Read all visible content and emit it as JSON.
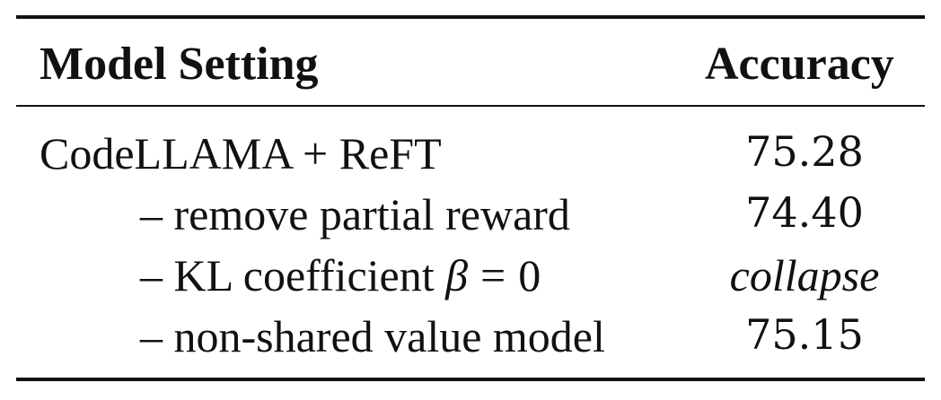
{
  "table": {
    "headers": {
      "setting": "Model Setting",
      "accuracy": "Accuracy"
    },
    "rows": [
      {
        "setting": "CodeLLAMA + ReFT",
        "accuracy": "75.28"
      },
      {
        "setting": "– remove partial reward",
        "accuracy": "74.40"
      },
      {
        "setting_prefix": "– KL coefficient",
        "math_symbol": "β",
        "math_operator": "=",
        "math_value": "0",
        "accuracy": "collapse"
      },
      {
        "setting": "– non-shared value model",
        "accuracy": "75.15"
      }
    ]
  }
}
